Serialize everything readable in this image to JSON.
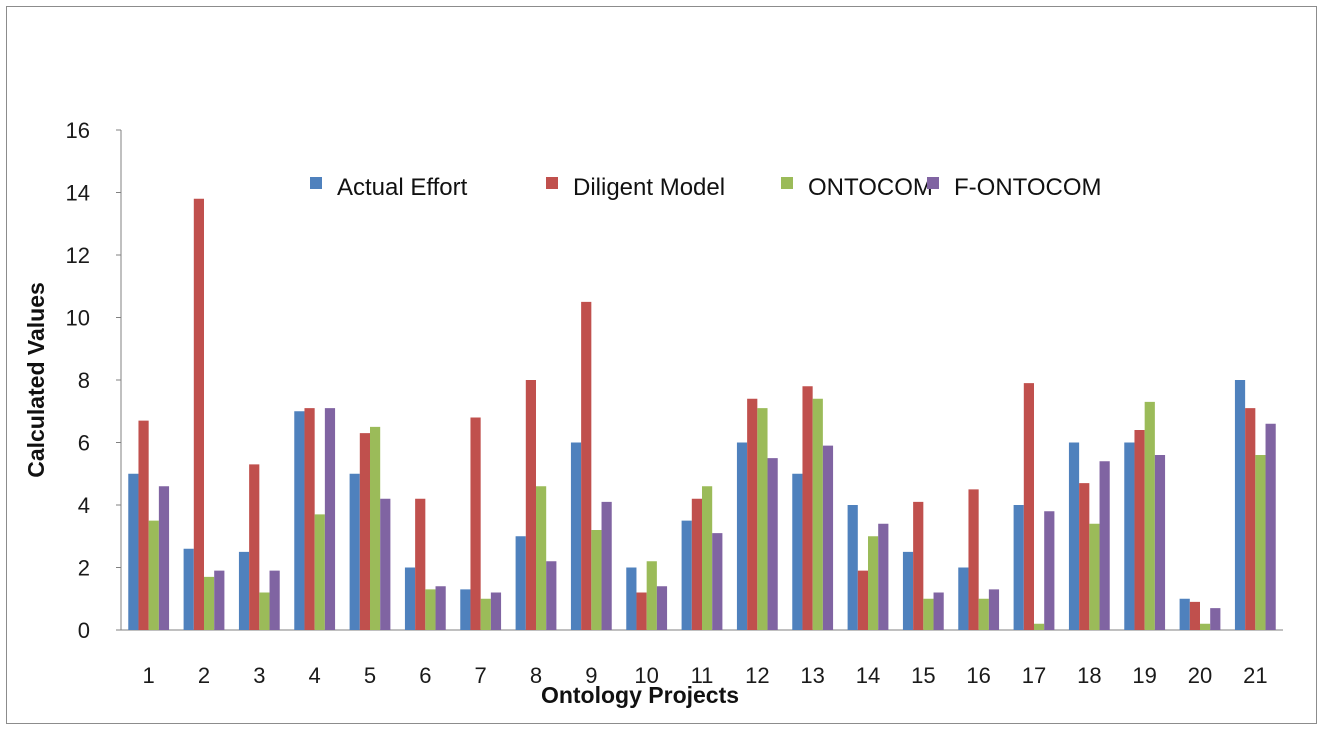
{
  "chart_data": {
    "type": "bar",
    "title": "",
    "xlabel": "Ontology Projects",
    "ylabel": "Calculated Values",
    "ylim": [
      0,
      16
    ],
    "yticks": [
      0,
      2,
      4,
      6,
      8,
      10,
      12,
      14,
      16
    ],
    "grid": false,
    "legend": "top",
    "categories": [
      "1",
      "2",
      "3",
      "4",
      "5",
      "6",
      "7",
      "8",
      "9",
      "10",
      "11",
      "12",
      "13",
      "14",
      "15",
      "16",
      "17",
      "18",
      "19",
      "20",
      "21"
    ],
    "series": [
      {
        "name": "Actual Effort",
        "color": "#4f81bd",
        "values": [
          5,
          2.6,
          2.5,
          7,
          5,
          2,
          1.3,
          3,
          6,
          2,
          3.5,
          6,
          5,
          4,
          2.5,
          2,
          4,
          6,
          6,
          1,
          8
        ]
      },
      {
        "name": "Diligent Model",
        "color": "#c0504d",
        "values": [
          6.7,
          13.8,
          5.3,
          7.1,
          6.3,
          4.2,
          6.8,
          8,
          10.5,
          1.2,
          4.2,
          7.4,
          7.8,
          1.9,
          4.1,
          4.5,
          7.9,
          4.7,
          6.4,
          0.9,
          7.1
        ]
      },
      {
        "name": "ONTOCOM",
        "color": "#9bbb59",
        "values": [
          3.5,
          1.7,
          1.2,
          3.7,
          6.5,
          1.3,
          1,
          4.6,
          3.2,
          2.2,
          4.6,
          7.1,
          7.4,
          3,
          1,
          1,
          0.2,
          3.4,
          7.3,
          0.2,
          5.6
        ]
      },
      {
        "name": "F-ONTOCOM",
        "color": "#8064a2",
        "values": [
          4.6,
          1.9,
          1.9,
          7.1,
          4.2,
          1.4,
          1.2,
          2.2,
          4.1,
          1.4,
          3.1,
          5.5,
          5.9,
          3.4,
          1.2,
          1.3,
          3.8,
          5.4,
          5.6,
          0.7,
          6.6
        ]
      }
    ]
  }
}
